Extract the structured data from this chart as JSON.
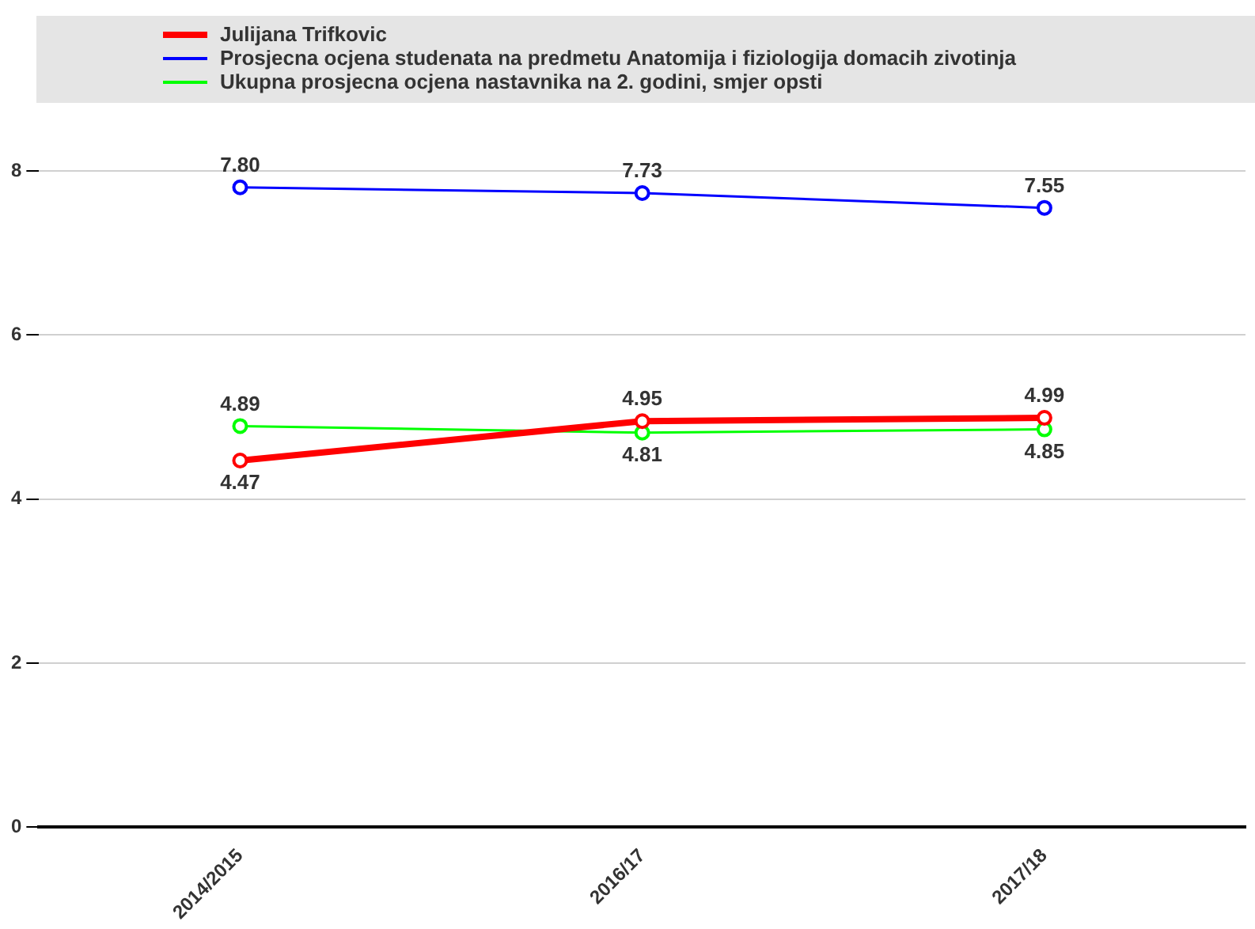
{
  "chart_data": {
    "type": "line",
    "categories": [
      "2014/2015",
      "2016/17",
      "2017/18"
    ],
    "series": [
      {
        "name": "Julijana Trifkovic",
        "color": "#ff0000",
        "values": [
          4.47,
          4.95,
          4.99
        ],
        "value_labels": [
          "4.47",
          "4.95",
          "4.99"
        ]
      },
      {
        "name": "Prosjecna ocjena studenata na predmetu Anatomija i fiziologija domacih zivotinja",
        "color": "#0000ff",
        "values": [
          7.8,
          7.73,
          7.55
        ],
        "value_labels": [
          "7.80",
          "7.73",
          "7.55"
        ]
      },
      {
        "name": "Ukupna prosjecna ocjena nastavnika na 2. godini, smjer opsti",
        "color": "#00ff00",
        "values": [
          4.89,
          4.81,
          4.85
        ],
        "value_labels": [
          "4.89",
          "4.81",
          "4.85"
        ]
      }
    ],
    "ylim": [
      0,
      8
    ],
    "yticks": [
      0,
      2,
      4,
      6,
      8
    ],
    "grid": "y",
    "legend": "top",
    "marker": "circle"
  }
}
